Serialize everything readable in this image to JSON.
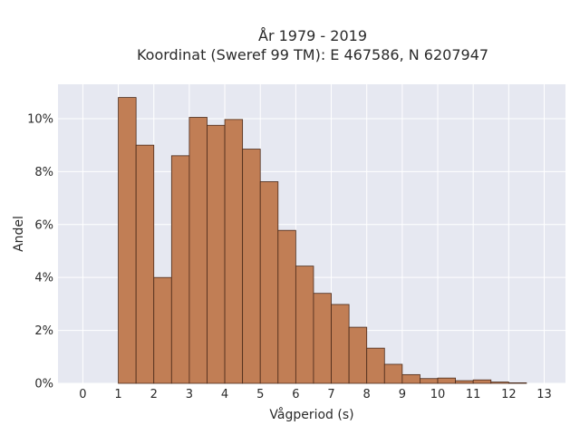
{
  "chart_data": {
    "type": "bar",
    "title_lines": [
      "År 1979 - 2019",
      "Koordinat (Sweref 99 TM): E 467586, N 6207947"
    ],
    "xlabel": "Vågperiod (s)",
    "ylabel": "Andel",
    "bin_width": 0.5,
    "bin_starts": [
      1.0,
      1.5,
      2.0,
      2.5,
      3.0,
      3.5,
      4.0,
      4.5,
      5.0,
      5.5,
      6.0,
      6.5,
      7.0,
      7.5,
      8.0,
      8.5,
      9.0,
      9.5,
      10.0,
      10.5,
      11.0,
      11.5,
      12.0
    ],
    "values": [
      10.8,
      9.0,
      4.0,
      8.6,
      10.05,
      9.75,
      9.97,
      8.85,
      7.62,
      5.78,
      4.43,
      3.4,
      2.98,
      2.12,
      1.33,
      0.72,
      0.33,
      0.18,
      0.2,
      0.1,
      0.13,
      0.05,
      0.02
    ],
    "xlim": [
      -0.7,
      13.6
    ],
    "ylim": [
      0,
      11.3
    ],
    "xticks": [
      0,
      1,
      2,
      3,
      4,
      5,
      6,
      7,
      8,
      9,
      10,
      11,
      12,
      13
    ],
    "yticks": [
      0,
      2,
      4,
      6,
      8,
      10
    ],
    "ytick_labels": [
      "0%",
      "2%",
      "4%",
      "6%",
      "8%",
      "10%"
    ],
    "grid": true,
    "colors": {
      "bar_fill": "#c17e55",
      "bar_edge": "#4a2a1a",
      "plot_bg": "#e6e8f1",
      "grid": "#ffffff"
    }
  }
}
